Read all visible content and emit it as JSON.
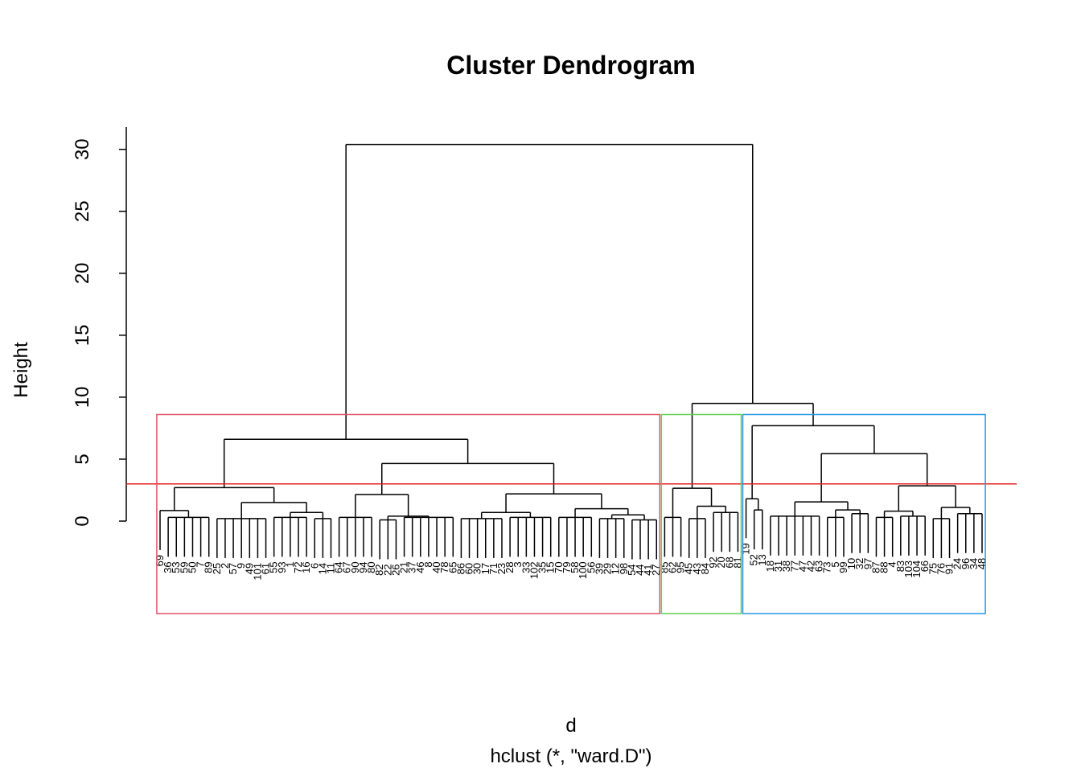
{
  "chart_data": {
    "type": "dendrogram",
    "title": "Cluster Dendrogram",
    "xlabel": "d",
    "subtitle": "hclust (*, \"ward.D\")",
    "ylabel": "Height",
    "ylim": [
      0,
      31.8
    ],
    "yticks": [
      0,
      5,
      10,
      15,
      20,
      25,
      30
    ],
    "cut_height": 3,
    "cut_color": "#E0201B",
    "k": 3,
    "rect_colors": [
      "#DF536B",
      "#61D04F",
      "#2297E6"
    ],
    "tree": {
      "h": 30.4,
      "c": [
        {
          "h": 6.6,
          "c": [
            {
              "h": 2.7,
              "c": [
                {
                  "h": 0.85,
                  "c": [
                    "69",
                    {
                      "h": 0.3,
                      "c": [
                        "36",
                        "53",
                        "59",
                        "50",
                        "7",
                        "89"
                      ]
                    }
                  ]
                },
                {
                  "h": 1.5,
                  "c": [
                    {
                      "h": 0.2,
                      "c": [
                        "25",
                        "2",
                        "57",
                        "9",
                        "49",
                        "101",
                        "61"
                      ]
                    },
                    {
                      "h": 0.7,
                      "c": [
                        {
                          "h": 0.3,
                          "c": [
                            "55",
                            "93",
                            "1",
                            "72",
                            "16"
                          ]
                        },
                        {
                          "h": 0.2,
                          "c": [
                            "6",
                            "14",
                            "11"
                          ]
                        }
                      ]
                    }
                  ]
                }
              ]
            },
            {
              "h": 4.65,
              "c": [
                {
                  "h": 2.15,
                  "c": [
                    {
                      "h": 0.3,
                      "c": [
                        "64",
                        "67",
                        "90",
                        "94",
                        "80"
                      ]
                    },
                    {
                      "h": 0.4,
                      "c": [
                        {
                          "h": 0.1,
                          "c": [
                            "82",
                            "22",
                            "26"
                          ]
                        },
                        {
                          "h": 0.3,
                          "c": [
                            "21",
                            "37",
                            "46",
                            "8",
                            "40",
                            "78",
                            "65"
                          ]
                        }
                      ]
                    }
                  ]
                },
                {
                  "h": 2.2,
                  "c": [
                    {
                      "h": 0.7,
                      "c": [
                        {
                          "h": 0.2,
                          "c": [
                            "86",
                            "60",
                            "30",
                            "17",
                            "71",
                            "23"
                          ]
                        },
                        {
                          "h": 0.3,
                          "c": [
                            "28",
                            "3",
                            "33",
                            "102",
                            "35",
                            "15"
                          ]
                        }
                      ]
                    },
                    {
                      "h": 1.0,
                      "c": [
                        {
                          "h": 0.3,
                          "c": [
                            "70",
                            "79",
                            "58",
                            "100",
                            "56"
                          ]
                        },
                        {
                          "h": 0.5,
                          "c": [
                            {
                              "h": 0.2,
                              "c": [
                                "39",
                                "29",
                                "12",
                                "98"
                              ]
                            },
                            {
                              "h": 0.1,
                              "c": [
                                "54",
                                "44",
                                "41",
                                "27"
                              ]
                            }
                          ]
                        }
                      ]
                    }
                  ]
                }
              ]
            }
          ]
        },
        {
          "h": 9.5,
          "c": [
            {
              "h": 2.65,
              "c": [
                {
                  "h": 0.3,
                  "c": [
                    "85",
                    "62",
                    "95"
                  ]
                },
                {
                  "h": 1.2,
                  "c": [
                    {
                      "h": 0.2,
                      "c": [
                        "45",
                        "43",
                        "84"
                      ]
                    },
                    {
                      "h": 0.7,
                      "c": [
                        "92",
                        "20",
                        "68",
                        "81"
                      ]
                    }
                  ]
                }
              ]
            },
            {
              "h": 7.7,
              "c": [
                {
                  "h": 1.8,
                  "c": [
                    "19",
                    {
                      "h": 0.9,
                      "c": [
                        "52",
                        "13"
                      ]
                    }
                  ]
                },
                {
                  "h": 5.45,
                  "c": [
                    {
                      "h": 1.55,
                      "c": [
                        {
                          "h": 0.4,
                          "c": [
                            "18",
                            "31",
                            "38",
                            "77",
                            "47",
                            "42",
                            "63"
                          ]
                        },
                        {
                          "h": 0.9,
                          "c": [
                            {
                              "h": 0.3,
                              "c": [
                                "73",
                                "5",
                                "99"
                              ]
                            },
                            {
                              "h": 0.6,
                              "c": [
                                "10",
                                "32",
                                "97"
                              ]
                            }
                          ]
                        }
                      ]
                    },
                    {
                      "h": 2.85,
                      "c": [
                        {
                          "h": 0.8,
                          "c": [
                            {
                              "h": 0.3,
                              "c": [
                                "87",
                                "88",
                                "4"
                              ]
                            },
                            {
                              "h": 0.4,
                              "c": [
                                "83",
                                "103",
                                "104",
                                "66"
                              ]
                            }
                          ]
                        },
                        {
                          "h": 1.1,
                          "c": [
                            {
                              "h": 0.2,
                              "c": [
                                "75",
                                "76",
                                "91"
                              ]
                            },
                            {
                              "h": 0.6,
                              "c": [
                                "24",
                                "96",
                                "34",
                                "48"
                              ]
                            }
                          ]
                        }
                      ]
                    }
                  ]
                }
              ]
            }
          ]
        }
      ]
    }
  }
}
